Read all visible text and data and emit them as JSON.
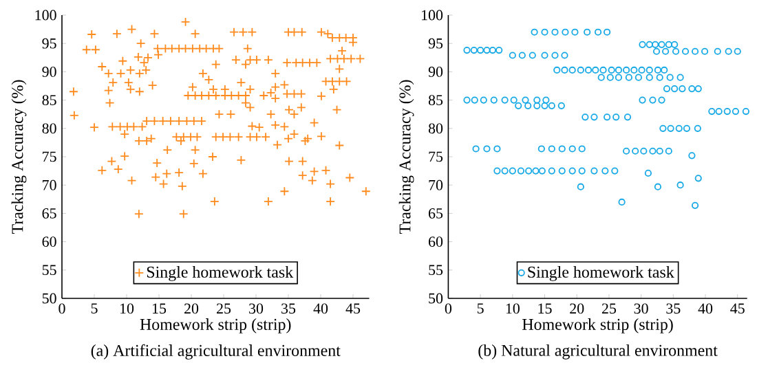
{
  "chart_data": [
    {
      "type": "scatter",
      "title": "(a) Artificial agricultural environment",
      "xlabel": "Homework strip (strip)",
      "ylabel": "Tracking Accuracy (%)",
      "xlim": [
        0,
        47.5
      ],
      "ylim": [
        50,
        100
      ],
      "xticks": [
        0,
        5,
        10,
        15,
        20,
        25,
        30,
        35,
        40,
        45
      ],
      "yticks": [
        50,
        55,
        60,
        65,
        70,
        75,
        80,
        85,
        90,
        95,
        100
      ],
      "legend": "bottom",
      "marker": "cross",
      "series": [
        {
          "name": "Single homework task",
          "color": "#ff8a1e",
          "x": [
            1.8,
            1.9,
            3.8,
            5.2,
            4.6,
            5,
            6.2,
            7.2,
            7.2,
            7.4,
            7.9,
            8.5,
            9.4,
            9.1,
            10.3,
            10.6,
            7.8,
            9,
            10.1,
            11.1,
            12.4,
            9.7,
            10.8,
            10.6,
            12,
            11.8,
            12.7,
            13,
            13.3,
            12.2,
            12,
            13.1,
            14.3,
            15.6,
            16.8,
            18.1,
            19.3,
            20.4,
            21.6,
            14.3,
            14,
            14.8,
            16,
            17,
            18.1,
            19.1,
            20.2,
            21.3,
            22.3,
            23.4,
            24.3,
            14.9,
            19.1,
            20.6,
            21.8,
            22.7,
            23.8,
            17.7,
            18.8,
            19.9,
            20.9,
            23.8,
            24.9,
            26,
            27.3,
            13.8,
            19.5,
            20.6,
            21.6,
            22.7,
            23.8,
            25.2,
            26.2,
            27.3,
            28.4,
            20.2,
            23.4,
            25.2,
            26.6,
            28,
            29.4,
            26.9,
            28.4,
            29.1,
            30.1,
            31.9,
            28.7,
            27.7,
            29.1,
            28.4,
            29.1,
            26.1,
            24.3,
            29.1,
            30.1,
            31.5,
            29.4,
            30.5,
            33,
            31.2,
            32.3,
            33,
            33,
            33,
            32.3,
            33.3,
            35,
            35.9,
            37.1,
            34.8,
            36.2,
            37.2,
            38.3,
            39.4,
            34.4,
            34.8,
            35.9,
            37,
            35.1,
            35.9,
            37,
            34.4,
            35,
            35.9,
            38,
            39,
            40.1,
            40.1,
            40.1,
            41.1,
            41.8,
            42.9,
            43.9,
            45,
            45,
            43.3,
            41.5,
            42.6,
            43.6,
            44.7,
            46.1,
            40.8,
            41.8,
            42.9,
            44,
            42.9,
            42,
            42.5,
            42.9,
            37.6,
            11.9,
            13.1,
            16.3,
            18.4,
            20.6,
            6.2,
            7.7,
            8.7,
            9.7,
            10.8,
            11.9,
            14.5,
            14.7,
            15.7,
            16.2,
            18.1,
            18.6,
            18.8,
            20.4,
            21.8,
            23.3,
            23.6,
            27.7,
            31.9,
            34.4,
            35.1,
            37.2,
            37.2,
            38.7,
            39,
            40.8,
            41.5,
            41.5,
            44.5,
            47
          ],
          "values": [
            86.5,
            82.3,
            93.9,
            93.9,
            96.6,
            80.2,
            90.9,
            89.7,
            86.7,
            84.5,
            88.1,
            96.7,
            91.9,
            89.7,
            88.1,
            86.9,
            80.3,
            80.3,
            80.3,
            80.3,
            80.3,
            79,
            97.5,
            90.3,
            89.7,
            92.6,
            91.6,
            90.3,
            92.5,
            95,
            86.5,
            81.3,
            81.3,
            81.3,
            81.3,
            81.3,
            81.3,
            81.3,
            81.3,
            96.7,
            87.6,
            94.1,
            94.1,
            94.1,
            94.1,
            94.1,
            94.1,
            94.1,
            94.1,
            94.1,
            94.1,
            93,
            98.8,
            96.7,
            89.7,
            88.6,
            91.3,
            78.5,
            78.5,
            78.5,
            78.5,
            78.5,
            78.5,
            78.5,
            78.5,
            78.2,
            85.8,
            85.8,
            85.8,
            85.8,
            85.8,
            85.8,
            85.8,
            85.8,
            85.8,
            87.3,
            86.9,
            86.9,
            97,
            97,
            97,
            92.1,
            91.3,
            92.1,
            92.1,
            92.1,
            94.1,
            88.1,
            86.9,
            84.5,
            83.7,
            82.5,
            82.5,
            78.5,
            78.5,
            78.5,
            80.4,
            80.2,
            80.6,
            85.8,
            86.3,
            87.3,
            85.3,
            89.7,
            82.5,
            77.1,
            97,
            97,
            97,
            91.6,
            91.6,
            91.6,
            91.6,
            91.6,
            87.7,
            86.1,
            86.1,
            86.1,
            83.3,
            82.5,
            83.7,
            80.3,
            78.2,
            79,
            78.2,
            81,
            78.6,
            85.7,
            97,
            96.7,
            96,
            96,
            96,
            96,
            95.2,
            93.7,
            92.3,
            92.3,
            92.3,
            92.3,
            92.3,
            88.3,
            88.3,
            88.3,
            88.3,
            90.5,
            86.9,
            83.3,
            77,
            77.8,
            77.8,
            77.8,
            76.2,
            77.8,
            76.2,
            72.6,
            74.2,
            72.8,
            75.1,
            70.8,
            64.9,
            71.4,
            73.9,
            70.2,
            72,
            72.2,
            69.8,
            64.9,
            73.8,
            72,
            75,
            67.1,
            74.4,
            67.1,
            68.9,
            74.2,
            74.2,
            71.7,
            70.8,
            72.4,
            72.6,
            70.2,
            67.1,
            71.3,
            68.9
          ]
        }
      ]
    },
    {
      "type": "scatter",
      "title": "(b) Natural agricultural environment",
      "xlabel": "Homework strip (strip)",
      "ylabel": "Tracking Accuracy (%)",
      "xlim": [
        0,
        46.5
      ],
      "ylim": [
        50,
        100
      ],
      "xticks": [
        0,
        5,
        10,
        15,
        20,
        25,
        30,
        35,
        40,
        45
      ],
      "yticks": [
        50,
        55,
        60,
        65,
        70,
        75,
        80,
        85,
        90,
        95,
        100
      ],
      "legend": "bottom",
      "marker": "circle",
      "series": [
        {
          "name": "Single homework task",
          "color": "#16a9e6",
          "x": [
            2.9,
            4,
            5,
            6,
            6.9,
            7.9,
            10,
            11.5,
            13.1,
            15,
            16.6,
            18.1,
            13.4,
            15,
            16.6,
            18.2,
            19.7,
            21.6,
            23.3,
            24.7,
            2.9,
            4.1,
            5.5,
            7.1,
            8.8,
            10.2,
            12,
            13.8,
            15.2,
            10.9,
            12.4,
            13.8,
            15,
            16.1,
            17.6,
            4.3,
            6,
            7.6,
            14.5,
            16.1,
            17.7,
            19.3,
            20.8,
            7.6,
            8.8,
            10,
            11.3,
            12.5,
            13.6,
            14.6,
            16.1,
            17.7,
            19.3,
            20.8,
            22.7,
            24.4,
            25.9,
            16.9,
            18.1,
            19.3,
            20.6,
            21.8,
            22.9,
            24.1,
            25.4,
            26.5,
            27.7,
            28.9,
            30.1,
            31.3,
            32.6,
            33.6,
            23.8,
            25.2,
            26.5,
            28.1,
            29.6,
            31.3,
            32.9,
            34.5,
            36.1,
            21.3,
            22.7,
            24.7,
            26.1,
            27.9,
            30.2,
            31.3,
            32.2,
            33.2,
            34.3,
            35.2,
            32.4,
            33.8,
            35.4,
            36.9,
            38.4,
            39.9,
            41.9,
            43.6,
            45,
            34,
            35.2,
            36.4,
            37.9,
            38.9,
            30.2,
            31.8,
            33.2,
            41,
            42.1,
            43.4,
            44.7,
            46.3,
            33.4,
            34.6,
            35.9,
            37.1,
            38.8,
            27.7,
            29.1,
            30.4,
            31.8,
            32.9,
            34.3,
            37.9,
            31.1,
            38.9,
            20.6,
            27,
            32.6,
            36.1,
            38.4
          ],
          "values": [
            93.8,
            93.8,
            93.8,
            93.8,
            93.8,
            93.8,
            92.9,
            92.9,
            92.9,
            92.9,
            92.9,
            92.9,
            97,
            97,
            97,
            97,
            97,
            97,
            97,
            97,
            85,
            85,
            85,
            85,
            85,
            85,
            85,
            85,
            85,
            84,
            84,
            84,
            84,
            84,
            84,
            76.4,
            76.4,
            76.4,
            76.4,
            76.4,
            76.4,
            76.4,
            76.4,
            72.5,
            72.5,
            72.5,
            72.5,
            72.5,
            72.5,
            72.5,
            72.5,
            72.5,
            72.5,
            72.5,
            72.5,
            72.5,
            72.5,
            90.3,
            90.3,
            90.3,
            90.3,
            90.3,
            90.3,
            90.3,
            90.3,
            90.3,
            90.3,
            90.3,
            90.3,
            90.3,
            90.3,
            90.3,
            89,
            89,
            89,
            89,
            89,
            89,
            89,
            89,
            89,
            82,
            82,
            82,
            82,
            82,
            94.8,
            94.8,
            94.8,
            94.8,
            94.8,
            94.8,
            93.6,
            93.6,
            93.6,
            93.6,
            93.6,
            93.6,
            93.6,
            93.6,
            93.6,
            87,
            87,
            87,
            87,
            87,
            85,
            85,
            85,
            83,
            83,
            83,
            83,
            83,
            80,
            80,
            80,
            80,
            80,
            76,
            76,
            76,
            76,
            76,
            76,
            75.2,
            72.1,
            71.2,
            69.7,
            67,
            69.7,
            70,
            66.4
          ]
        }
      ]
    }
  ]
}
